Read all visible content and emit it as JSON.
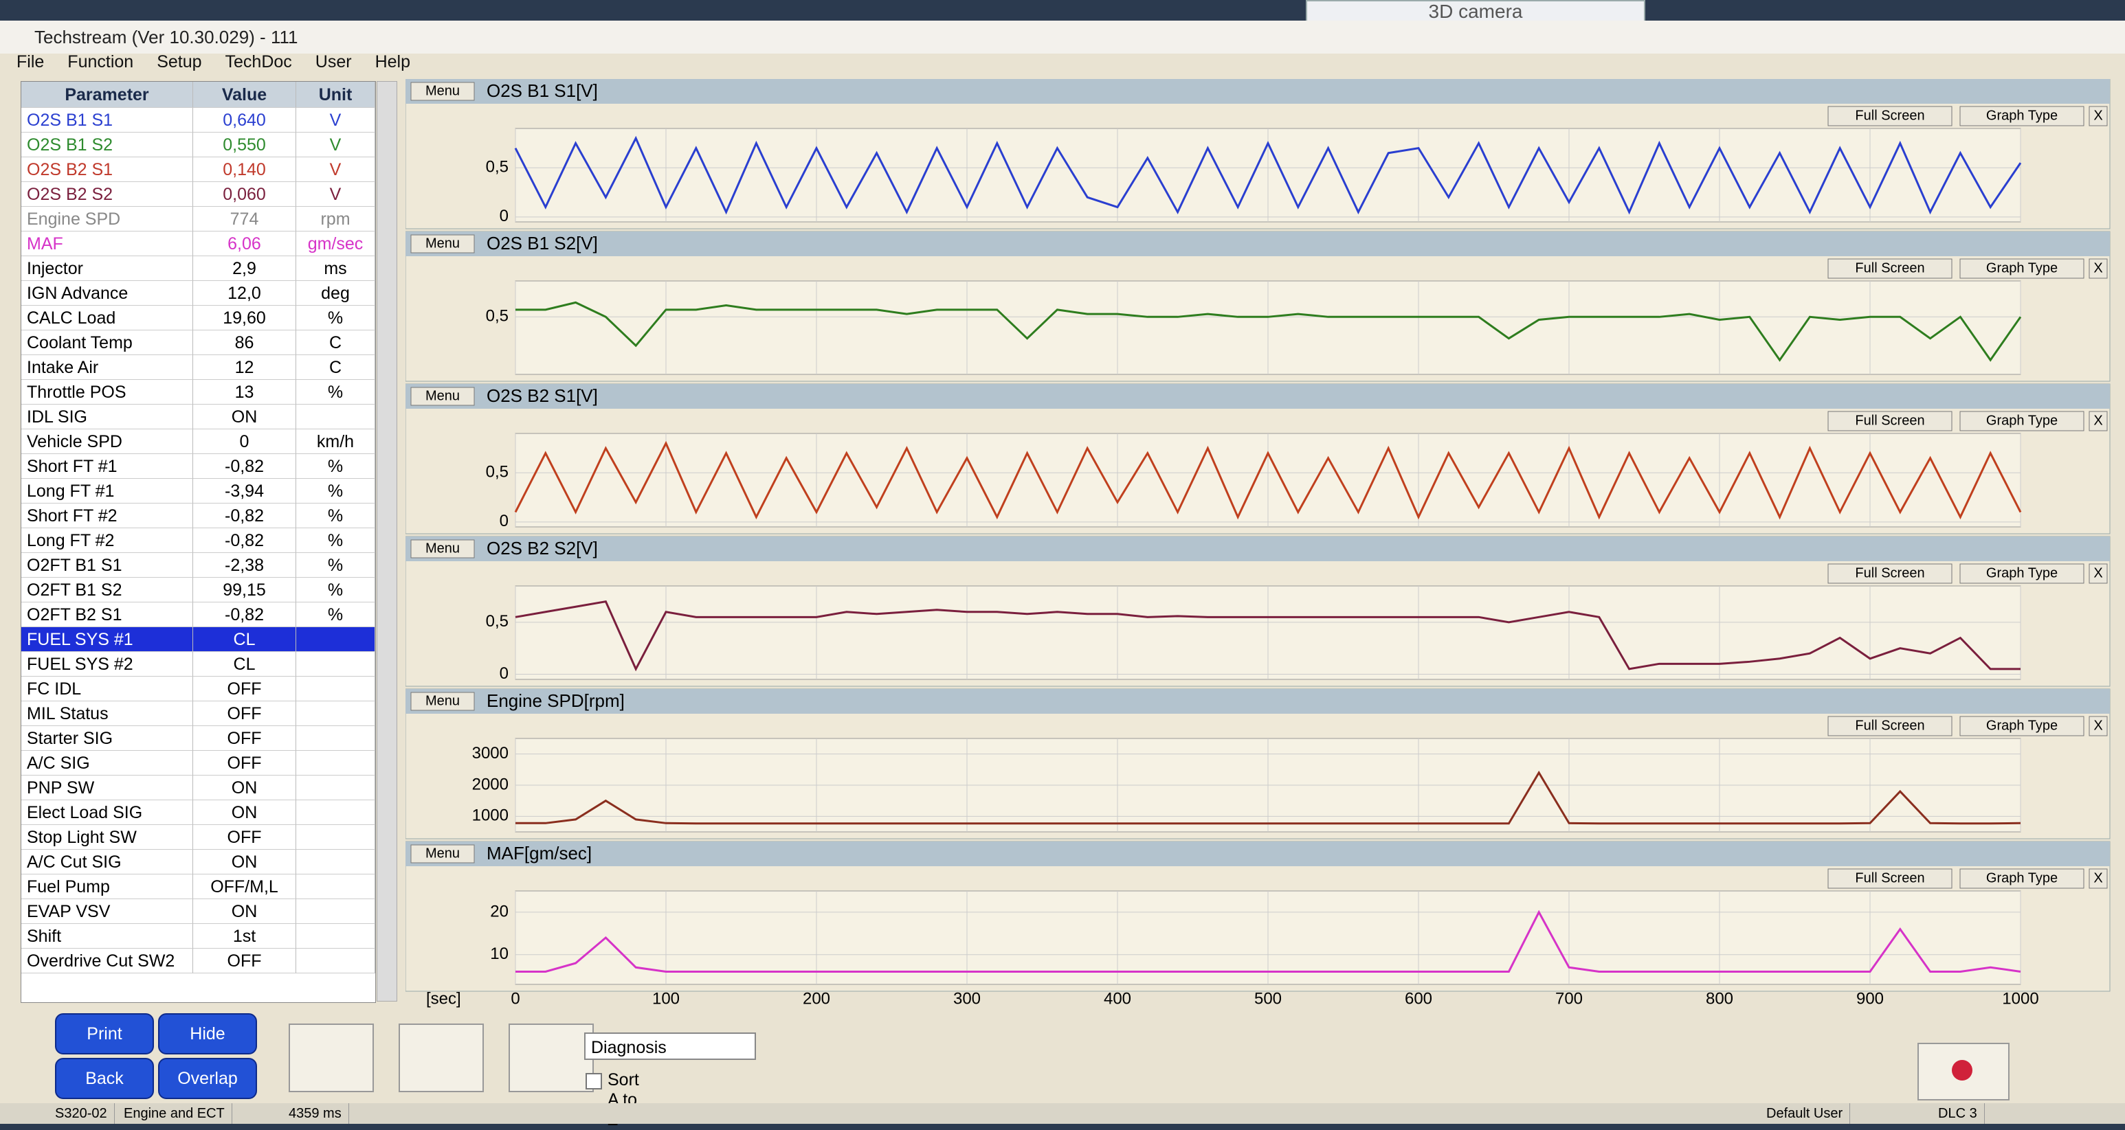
{
  "window": {
    "title": "Techstream (Ver 10.30.029) - 111",
    "camera": "3D camera"
  },
  "menu": [
    "File",
    "Function",
    "Setup",
    "TechDoc",
    "User",
    "Help"
  ],
  "table": {
    "headers": [
      "Parameter",
      "Value",
      "Unit"
    ],
    "rows": [
      {
        "cells": [
          "O2S B1 S1",
          "0,640",
          "V"
        ],
        "color": "#2a3fd0"
      },
      {
        "cells": [
          "O2S B1 S2",
          "0,550",
          "V"
        ],
        "color": "#2e8b2e"
      },
      {
        "cells": [
          "O2S B2 S1",
          "0,140",
          "V"
        ],
        "color": "#c0392b"
      },
      {
        "cells": [
          "O2S B2 S2",
          "0,060",
          "V"
        ],
        "color": "#7a1f3d"
      },
      {
        "cells": [
          "Engine SPD",
          "774",
          "rpm"
        ],
        "color": "#888888"
      },
      {
        "cells": [
          "MAF",
          "6,06",
          "gm/sec"
        ],
        "color": "#d633c8"
      },
      {
        "cells": [
          "Injector",
          "2,9",
          "ms"
        ]
      },
      {
        "cells": [
          "IGN Advance",
          "12,0",
          "deg"
        ]
      },
      {
        "cells": [
          "CALC Load",
          "19,60",
          "%"
        ]
      },
      {
        "cells": [
          "Coolant Temp",
          "86",
          "C"
        ]
      },
      {
        "cells": [
          "Intake Air",
          "12",
          "C"
        ]
      },
      {
        "cells": [
          "Throttle POS",
          "13",
          "%"
        ]
      },
      {
        "cells": [
          "IDL SIG",
          "ON"
        ]
      },
      {
        "cells": [
          "Vehicle SPD",
          "0",
          "km/h"
        ]
      },
      {
        "cells": [
          "Short FT #1",
          "-0,82",
          "%"
        ]
      },
      {
        "cells": [
          "Long FT #1",
          "-3,94",
          "%"
        ]
      },
      {
        "cells": [
          "Short FT #2",
          "-0,82",
          "%"
        ]
      },
      {
        "cells": [
          "Long FT #2",
          "-0,82",
          "%"
        ]
      },
      {
        "cells": [
          "O2FT B1 S1",
          "-2,38",
          "%"
        ]
      },
      {
        "cells": [
          "O2FT B1 S2",
          "99,15",
          "%"
        ]
      },
      {
        "cells": [
          "O2FT B2 S1",
          "-0,82",
          "%"
        ]
      },
      {
        "cells": [
          "FUEL SYS #1",
          "CL"
        ],
        "selected": true
      },
      {
        "cells": [
          "FUEL SYS #2",
          "CL"
        ]
      },
      {
        "cells": [
          "FC IDL",
          "OFF"
        ]
      },
      {
        "cells": [
          "MIL Status",
          "OFF"
        ]
      },
      {
        "cells": [
          "Starter SIG",
          "OFF"
        ]
      },
      {
        "cells": [
          "A/C SIG",
          "OFF"
        ]
      },
      {
        "cells": [
          "PNP SW",
          "ON"
        ]
      },
      {
        "cells": [
          "Elect Load SIG",
          "ON"
        ]
      },
      {
        "cells": [
          "Stop Light SW",
          "OFF"
        ]
      },
      {
        "cells": [
          "A/C Cut SIG",
          "ON"
        ]
      },
      {
        "cells": [
          "Fuel Pump",
          "OFF/M,L"
        ]
      },
      {
        "cells": [
          "EVAP VSV",
          "ON"
        ]
      },
      {
        "cells": [
          "Shift",
          "1st"
        ]
      },
      {
        "cells": [
          "Overdrive Cut SW2",
          "OFF"
        ]
      }
    ]
  },
  "graphs": {
    "buttons": [
      "Menu",
      "Full Screen",
      "Graph Type",
      "X"
    ],
    "x_label": "[sec]",
    "xlim": [
      0,
      1000
    ],
    "xticks": [
      0,
      100,
      200,
      300,
      400,
      500,
      600,
      700,
      800,
      900,
      1000
    ],
    "x": [
      0,
      20,
      40,
      60,
      80,
      100,
      120,
      140,
      160,
      180,
      200,
      220,
      240,
      260,
      280,
      300,
      320,
      340,
      360,
      380,
      400,
      420,
      440,
      460,
      480,
      500,
      520,
      540,
      560,
      580,
      600,
      620,
      640,
      660,
      680,
      700,
      720,
      740,
      760,
      780,
      800,
      820,
      840,
      860,
      880,
      900,
      920,
      940,
      960,
      980,
      1000
    ],
    "panels": [
      {
        "title": "O2S B1 S1[V]",
        "color": "#2a3fd0",
        "ylim": [
          -0.05,
          0.9
        ],
        "yticks": [
          {
            "value": 0.5,
            "label": "0,5"
          },
          0
        ],
        "values": [
          0.7,
          0.1,
          0.75,
          0.2,
          0.8,
          0.1,
          0.7,
          0.05,
          0.75,
          0.1,
          0.7,
          0.1,
          0.65,
          0.05,
          0.7,
          0.1,
          0.75,
          0.1,
          0.7,
          0.2,
          0.1,
          0.6,
          0.05,
          0.7,
          0.1,
          0.75,
          0.1,
          0.7,
          0.05,
          0.65,
          0.7,
          0.2,
          0.75,
          0.1,
          0.7,
          0.15,
          0.7,
          0.05,
          0.75,
          0.1,
          0.7,
          0.1,
          0.65,
          0.05,
          0.7,
          0.1,
          0.75,
          0.05,
          0.65,
          0.1,
          0.55
        ]
      },
      {
        "title": "O2S B1 S2[V]",
        "color": "#2e7d1e",
        "ylim": [
          0.1,
          0.75
        ],
        "yticks": [
          {
            "value": 0.5,
            "label": "0,5"
          }
        ],
        "values": [
          0.55,
          0.55,
          0.6,
          0.5,
          0.3,
          0.55,
          0.55,
          0.58,
          0.55,
          0.55,
          0.55,
          0.55,
          0.55,
          0.52,
          0.55,
          0.55,
          0.55,
          0.35,
          0.55,
          0.52,
          0.52,
          0.5,
          0.5,
          0.52,
          0.5,
          0.5,
          0.52,
          0.5,
          0.5,
          0.5,
          0.5,
          0.5,
          0.5,
          0.35,
          0.48,
          0.5,
          0.5,
          0.5,
          0.5,
          0.52,
          0.48,
          0.5,
          0.2,
          0.5,
          0.48,
          0.5,
          0.5,
          0.35,
          0.5,
          0.2,
          0.5
        ]
      },
      {
        "title": "O2S B2 S1[V]",
        "color": "#c0401e",
        "ylim": [
          -0.05,
          0.9
        ],
        "yticks": [
          {
            "value": 0.5,
            "label": "0,5"
          },
          0
        ],
        "values": [
          0.1,
          0.7,
          0.1,
          0.75,
          0.2,
          0.8,
          0.1,
          0.7,
          0.05,
          0.65,
          0.1,
          0.7,
          0.15,
          0.75,
          0.1,
          0.65,
          0.05,
          0.7,
          0.1,
          0.75,
          0.2,
          0.7,
          0.1,
          0.75,
          0.05,
          0.7,
          0.1,
          0.65,
          0.1,
          0.75,
          0.05,
          0.7,
          0.15,
          0.7,
          0.1,
          0.75,
          0.05,
          0.7,
          0.1,
          0.65,
          0.1,
          0.7,
          0.05,
          0.75,
          0.1,
          0.7,
          0.1,
          0.65,
          0.05,
          0.7,
          0.1
        ]
      },
      {
        "title": "O2S B2 S2[V]",
        "color": "#7a1f3d",
        "ylim": [
          -0.05,
          0.85
        ],
        "yticks": [
          {
            "value": 0.5,
            "label": "0,5"
          },
          0
        ],
        "values": [
          0.55,
          0.6,
          0.65,
          0.7,
          0.05,
          0.6,
          0.55,
          0.55,
          0.55,
          0.55,
          0.55,
          0.6,
          0.58,
          0.6,
          0.62,
          0.6,
          0.6,
          0.58,
          0.6,
          0.58,
          0.58,
          0.55,
          0.56,
          0.55,
          0.55,
          0.55,
          0.55,
          0.55,
          0.55,
          0.55,
          0.55,
          0.55,
          0.55,
          0.5,
          0.55,
          0.6,
          0.55,
          0.05,
          0.1,
          0.1,
          0.1,
          0.12,
          0.15,
          0.2,
          0.35,
          0.15,
          0.25,
          0.2,
          0.35,
          0.05,
          0.05
        ]
      },
      {
        "title": "Engine SPD[rpm]",
        "color": "#8a2e1e",
        "ylim": [
          500,
          3500
        ],
        "yticks": [
          3000,
          2000,
          1000
        ],
        "values": [
          780,
          780,
          900,
          1500,
          900,
          780,
          770,
          770,
          770,
          770,
          770,
          770,
          770,
          770,
          770,
          770,
          770,
          770,
          770,
          770,
          770,
          770,
          770,
          770,
          770,
          770,
          770,
          770,
          770,
          770,
          770,
          770,
          770,
          770,
          2400,
          780,
          770,
          770,
          770,
          770,
          770,
          770,
          770,
          770,
          770,
          780,
          1800,
          780,
          770,
          770,
          780
        ]
      },
      {
        "title": "MAF[gm/sec]",
        "color": "#d633c8",
        "ylim": [
          3,
          25
        ],
        "yticks": [
          20,
          10
        ],
        "values": [
          6,
          6,
          8,
          14,
          7,
          6,
          6,
          6,
          6,
          6,
          6,
          6,
          6,
          6,
          6,
          6,
          6,
          6,
          6,
          6,
          6,
          6,
          6,
          6,
          6,
          6,
          6,
          6,
          6,
          6,
          6,
          6,
          6,
          6,
          20,
          7,
          6,
          6,
          6,
          6,
          6,
          6,
          6,
          6,
          6,
          6,
          16,
          6,
          6,
          7,
          6
        ]
      }
    ]
  },
  "controls": {
    "buttons": [
      "Print",
      "Hide",
      "Back",
      "Overlap"
    ],
    "dropdown": "Diagnosis",
    "checkbox": "Sort A to Z"
  },
  "status": [
    "S320-02",
    "Engine and ECT",
    "4359 ms",
    "Default User",
    "DLC 3"
  ]
}
